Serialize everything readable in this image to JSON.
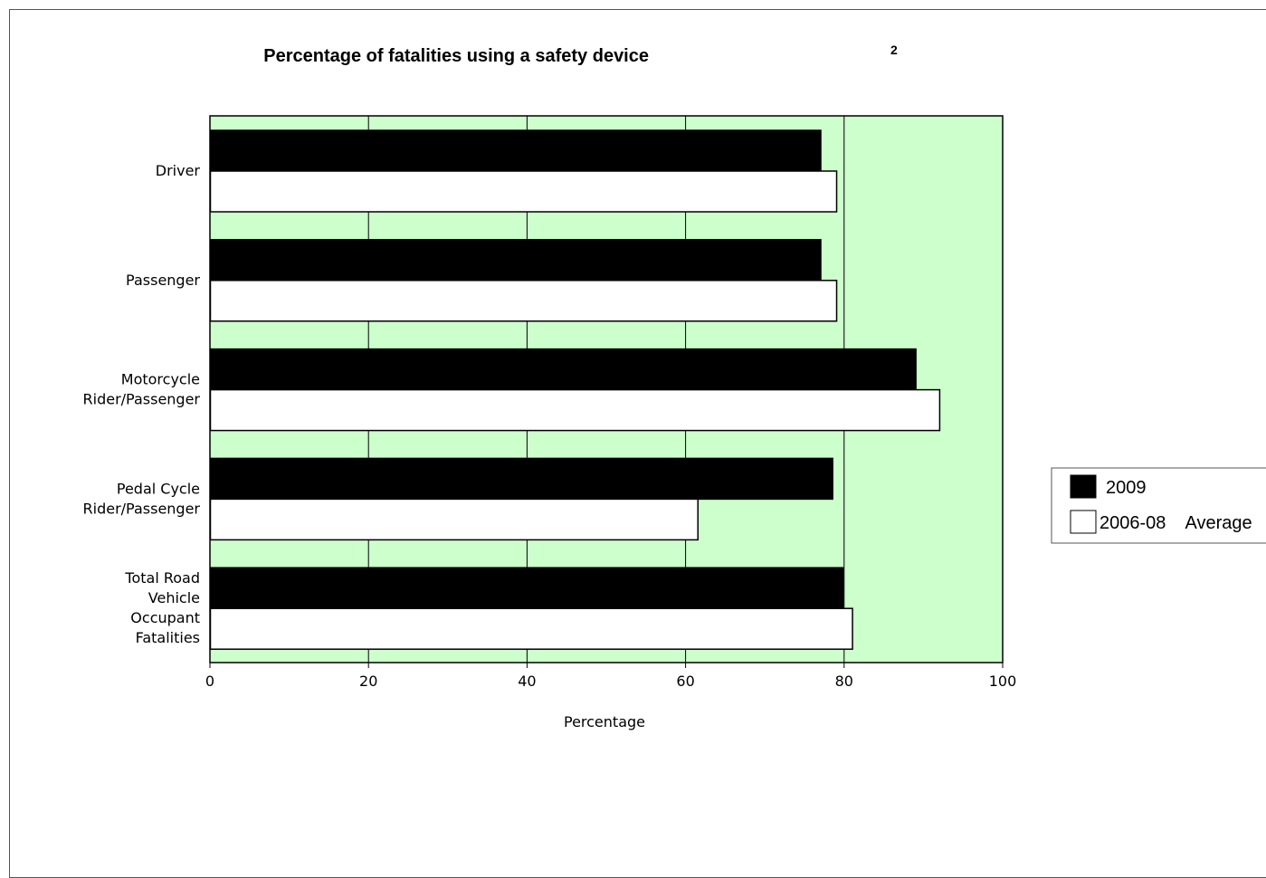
{
  "chart_data": {
    "type": "bar",
    "orientation": "horizontal",
    "title": "Percentage of fatalities using a safety device",
    "title_superscript": "2",
    "xlabel": "Percentage",
    "ylabel": "",
    "xlim": [
      0,
      100
    ],
    "xticks": [
      "0",
      "20",
      "40",
      "60",
      "80",
      "100"
    ],
    "categories": [
      [
        "Driver"
      ],
      [
        "Passenger"
      ],
      [
        "Motorcycle",
        "Rider/Passenger"
      ],
      [
        "Pedal Cycle",
        "Rider/Passenger"
      ],
      [
        "Total Road",
        "Vehicle",
        "Occupant",
        "Fatalities"
      ]
    ],
    "series": [
      {
        "name": "2009",
        "values": [
          77,
          77,
          89,
          78.5,
          79.8
        ],
        "color": "#000000"
      },
      {
        "name": "2006-08    Average",
        "values": [
          79,
          79,
          92,
          61.5,
          81
        ],
        "color": "#ffffff"
      }
    ],
    "grid": true,
    "plot_background": "#ccffcc",
    "legend_position": "right"
  }
}
